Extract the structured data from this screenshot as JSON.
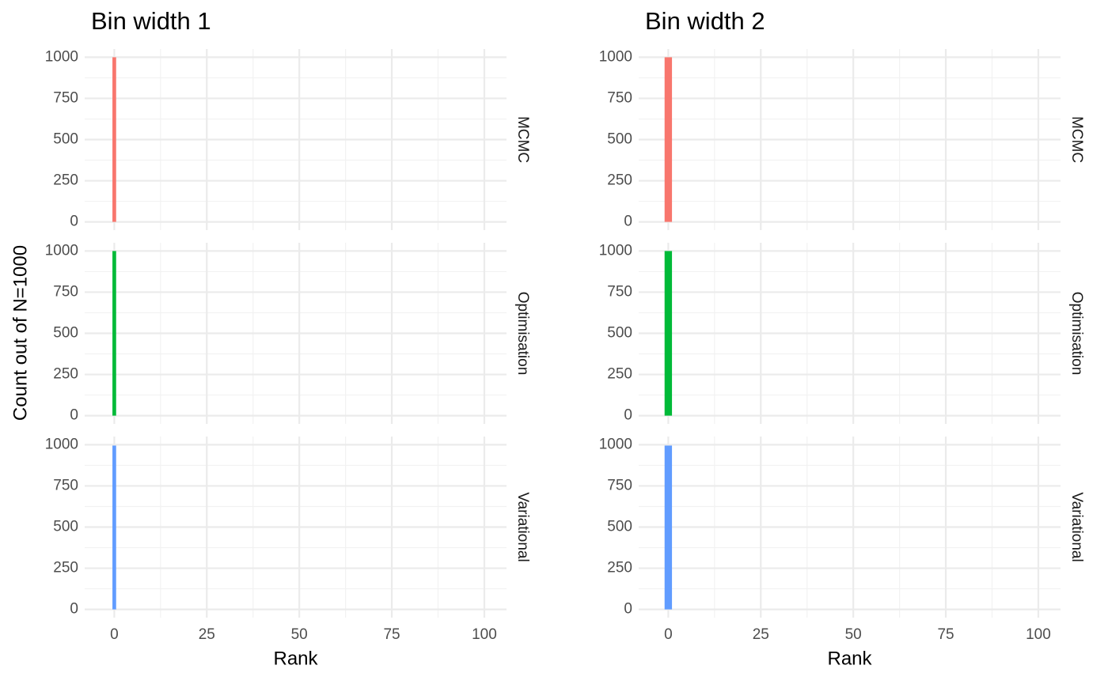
{
  "chart_data": [
    {
      "type": "histogram",
      "title": "Bin width 1",
      "xlabel": "Rank",
      "ylabel": "Count out of N=1000",
      "xlim": [
        -8,
        106
      ],
      "xticks": [
        0,
        25,
        50,
        75,
        100
      ],
      "xminor": [
        12.5,
        37.5,
        62.5,
        87.5
      ],
      "ylim": [
        -50,
        1050
      ],
      "yticks": [
        0,
        250,
        500,
        750,
        1000
      ],
      "yminor": [
        125,
        375,
        625,
        875
      ],
      "grid": true,
      "facets": [
        {
          "name": "MCMC",
          "color": "#f8766d",
          "bins": [
            -0.5,
            0.5
          ],
          "counts": [
            1000
          ]
        },
        {
          "name": "Optimisation",
          "color": "#00ba38",
          "bins": [
            -0.5,
            0.5
          ],
          "counts": [
            1000
          ]
        },
        {
          "name": "Variational",
          "color": "#619cff",
          "bins": [
            -0.5,
            0.5
          ],
          "counts": [
            995
          ]
        }
      ]
    },
    {
      "type": "histogram",
      "title": "Bin width 2",
      "xlabel": "Rank",
      "xlim": [
        -8,
        106
      ],
      "xticks": [
        0,
        25,
        50,
        75,
        100
      ],
      "xminor": [
        12.5,
        37.5,
        62.5,
        87.5
      ],
      "ylim": [
        -50,
        1050
      ],
      "yticks": [
        0,
        250,
        500,
        750,
        1000
      ],
      "yminor": [
        125,
        375,
        625,
        875
      ],
      "grid": true,
      "facets": [
        {
          "name": "MCMC",
          "color": "#f8766d",
          "bins": [
            -1,
            1
          ],
          "counts": [
            1000
          ]
        },
        {
          "name": "Optimisation",
          "color": "#00ba38",
          "bins": [
            -1,
            1
          ],
          "counts": [
            1000
          ]
        },
        {
          "name": "Variational",
          "color": "#619cff",
          "bins": [
            -1,
            1
          ],
          "counts": [
            995
          ]
        }
      ]
    }
  ]
}
